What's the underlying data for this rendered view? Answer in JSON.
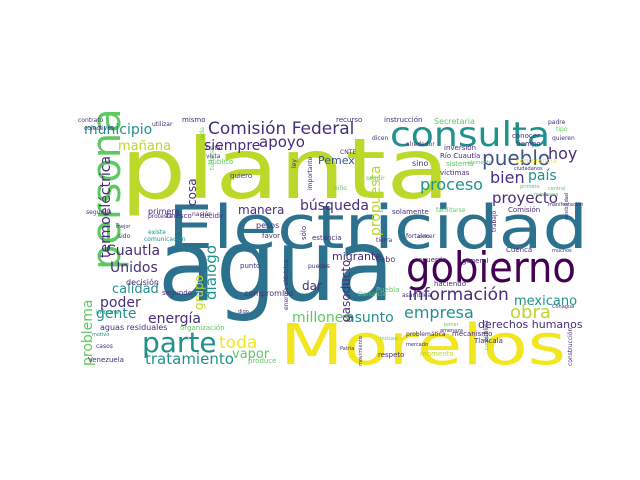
{
  "palette": {
    "background": "#ffffff",
    "yellow": "#f2e61e",
    "lime": "#bcd82a",
    "green": "#5ec962",
    "teal": "#21918c",
    "darkteal": "#2c728e",
    "blue": "#3b528b",
    "indigo": "#472d7b",
    "purple": "#440154"
  },
  "words": [
    {
      "text": "agua",
      "color": "darkteal"
    },
    {
      "text": "Electricidad",
      "color": "darkteal"
    },
    {
      "text": "planta",
      "color": "lime"
    },
    {
      "text": "Morelos",
      "color": "yellow"
    },
    {
      "text": "gobierno",
      "color": "purple"
    },
    {
      "text": "consulta",
      "color": "teal"
    },
    {
      "text": "persona",
      "color": "green"
    },
    {
      "text": "parte",
      "color": "teal"
    },
    {
      "text": "Comisión Federal",
      "color": "indigo"
    },
    {
      "text": "información",
      "color": "indigo"
    },
    {
      "text": "pueblo",
      "color": "blue"
    },
    {
      "text": "bien",
      "color": "indigo"
    },
    {
      "text": "hoy",
      "color": "indigo"
    },
    {
      "text": "país",
      "color": "teal"
    },
    {
      "text": "proceso",
      "color": "teal"
    },
    {
      "text": "proyecto",
      "color": "indigo"
    },
    {
      "text": "empresa",
      "color": "teal"
    },
    {
      "text": "obra",
      "color": "lime"
    },
    {
      "text": "mexicano",
      "color": "teal"
    },
    {
      "text": "asunto",
      "color": "teal"
    },
    {
      "text": "millones",
      "color": "green"
    },
    {
      "text": "toda",
      "color": "yellow"
    },
    {
      "text": "vapor",
      "color": "green"
    },
    {
      "text": "tratamiento",
      "color": "teal"
    },
    {
      "text": "energía",
      "color": "indigo"
    },
    {
      "text": "gente",
      "color": "teal"
    },
    {
      "text": "poder",
      "color": "indigo"
    },
    {
      "text": "calidad",
      "color": "teal"
    },
    {
      "text": "Unidos",
      "color": "indigo"
    },
    {
      "text": "Cuautla",
      "color": "indigo"
    },
    {
      "text": "termoeléctrica",
      "color": "indigo"
    },
    {
      "text": "municipio",
      "color": "teal"
    },
    {
      "text": "mañana",
      "color": "lime"
    },
    {
      "text": "siempre",
      "color": "indigo"
    },
    {
      "text": "apoyo",
      "color": "indigo"
    },
    {
      "text": "Pemex",
      "color": "blue"
    },
    {
      "text": "cosa",
      "color": "indigo"
    },
    {
      "text": "manera",
      "color": "indigo"
    },
    {
      "text": "búsqueda",
      "color": "indigo"
    },
    {
      "text": "diálogo",
      "color": "teal"
    },
    {
      "text": "grupo",
      "color": "lime"
    },
    {
      "text": "problema",
      "color": "green"
    },
    {
      "text": "propuesta",
      "color": "lime"
    },
    {
      "text": "gasoducto",
      "color": "indigo"
    },
    {
      "text": "dar",
      "color": "indigo"
    },
    {
      "text": "migrante",
      "color": "indigo"
    },
    {
      "text": "derechos humanos",
      "color": "indigo"
    },
    {
      "text": "Secretaria",
      "color": "green"
    },
    {
      "text": "instrucción",
      "color": "indigo"
    },
    {
      "text": "recurso",
      "color": "indigo"
    },
    {
      "text": "Río Cuautla",
      "color": "indigo"
    },
    {
      "text": "sino",
      "color": "indigo"
    },
    {
      "text": "víctimas",
      "color": "indigo"
    },
    {
      "text": "inversión",
      "color": "indigo"
    },
    {
      "text": "conocer",
      "color": "indigo"
    },
    {
      "text": "sistema",
      "color": "green"
    },
    {
      "text": "tiempo",
      "color": "indigo"
    },
    {
      "text": "conferencia",
      "color": "yellow"
    },
    {
      "text": "solamente",
      "color": "indigo"
    },
    {
      "text": "general",
      "color": "indigo"
    },
    {
      "text": "Comisión",
      "color": "indigo"
    },
    {
      "text": "acuerdo",
      "color": "indigo"
    },
    {
      "text": "Cuenca",
      "color": "indigo"
    },
    {
      "text": "decisión",
      "color": "indigo"
    },
    {
      "text": "segundo",
      "color": "indigo"
    },
    {
      "text": "primera",
      "color": "indigo"
    },
    {
      "text": "pesos",
      "color": "indigo"
    },
    {
      "text": "favor",
      "color": "indigo"
    },
    {
      "text": "estancia",
      "color": "indigo"
    },
    {
      "text": "cabo",
      "color": "indigo"
    },
    {
      "text": "punto",
      "color": "indigo"
    },
    {
      "text": "compromiso",
      "color": "indigo"
    },
    {
      "text": "haciendo",
      "color": "indigo"
    },
    {
      "text": "mecanismo",
      "color": "indigo"
    },
    {
      "text": "Tlaxcala",
      "color": "indigo"
    },
    {
      "text": "Puebla",
      "color": "green"
    },
    {
      "text": "aguas residuales",
      "color": "indigo"
    },
    {
      "text": "organización",
      "color": "green"
    },
    {
      "text": "Venezuela",
      "color": "indigo"
    },
    {
      "text": "produce",
      "color": "green"
    },
    {
      "text": "momento",
      "color": "lime"
    },
    {
      "text": "respeto",
      "color": "indigo"
    },
    {
      "text": "Unesco",
      "color": "indigo"
    },
    {
      "text": "decidir",
      "color": "indigo"
    },
    {
      "text": "público",
      "color": "green"
    },
    {
      "text": "quiero",
      "color": "indigo"
    },
    {
      "text": "mismo",
      "color": "indigo"
    },
    {
      "text": "contrato",
      "color": "indigo"
    },
    {
      "text": "padre",
      "color": "indigo"
    },
    {
      "text": "construcción",
      "color": "indigo"
    },
    {
      "text": "informe",
      "color": "teal"
    },
    {
      "text": "casos",
      "color": "indigo"
    },
    {
      "text": "Denuncia",
      "color": "green"
    },
    {
      "text": "sólo",
      "color": "indigo"
    },
    {
      "text": "energía eléctrica",
      "color": "indigo"
    },
    {
      "text": "alrededor",
      "color": "indigo"
    },
    {
      "text": "quieren",
      "color": "indigo"
    },
    {
      "text": "tipo",
      "color": "green"
    },
    {
      "text": "nación",
      "color": "indigo"
    },
    {
      "text": "existe",
      "color": "teal"
    },
    {
      "text": "comunicación",
      "color": "teal"
    },
    {
      "text": "fortalecer",
      "color": "indigo"
    },
    {
      "text": "asamblea",
      "color": "indigo"
    },
    {
      "text": "problemática",
      "color": "indigo"
    },
    {
      "text": "Conagua",
      "color": "indigo"
    },
    {
      "text": "dicen",
      "color": "indigo"
    },
    {
      "text": "vista",
      "color": "indigo"
    },
    {
      "text": "tratar",
      "color": "indigo"
    },
    {
      "text": "utilizar",
      "color": "indigo"
    },
    {
      "text": "colectivos",
      "color": "indigo"
    },
    {
      "text": "turbina",
      "color": "green"
    },
    {
      "text": "ciudadanos",
      "color": "indigo"
    },
    {
      "text": "elemento",
      "color": "green"
    },
    {
      "text": "primero",
      "color": "green"
    },
    {
      "text": "central",
      "color": "green"
    },
    {
      "text": "mexicana",
      "color": "green"
    },
    {
      "text": "motivo",
      "color": "teal"
    },
    {
      "text": "muchos",
      "color": "indigo"
    },
    {
      "text": "ciclo",
      "color": "indigo"
    },
    {
      "text": "facilitarse",
      "color": "green"
    },
    {
      "text": "incluso",
      "color": "green"
    },
    {
      "text": "poner",
      "color": "green"
    },
    {
      "text": "mercado",
      "color": "indigo"
    },
    {
      "text": "cumplir",
      "color": "green"
    },
    {
      "text": "digo",
      "color": "indigo"
    },
    {
      "text": "Patria",
      "color": "indigo"
    },
    {
      "text": "movimiento",
      "color": "indigo"
    },
    {
      "text": "posibilidad",
      "color": "indigo"
    },
    {
      "text": "manifestación",
      "color": "indigo"
    },
    {
      "text": "protesta",
      "color": "indigo"
    },
    {
      "text": "sido",
      "color": "indigo"
    },
    {
      "text": "mejor",
      "color": "indigo"
    },
    {
      "text": "ley",
      "color": "indigo"
    },
    {
      "text": "importante",
      "color": "indigo"
    },
    {
      "text": "CNTE",
      "color": "indigo"
    },
    {
      "text": "niño",
      "color": "green"
    },
    {
      "text": "seguir",
      "color": "green"
    },
    {
      "text": "lado",
      "color": "green"
    },
    {
      "text": "tierra",
      "color": "indigo"
    },
    {
      "text": "trabajo",
      "color": "indigo"
    },
    {
      "text": "segunda",
      "color": "indigo"
    },
    {
      "text": "amenaza",
      "color": "indigo"
    },
    {
      "text": "pública",
      "color": "indigo"
    },
    {
      "text": "puedes",
      "color": "indigo"
    }
  ]
}
